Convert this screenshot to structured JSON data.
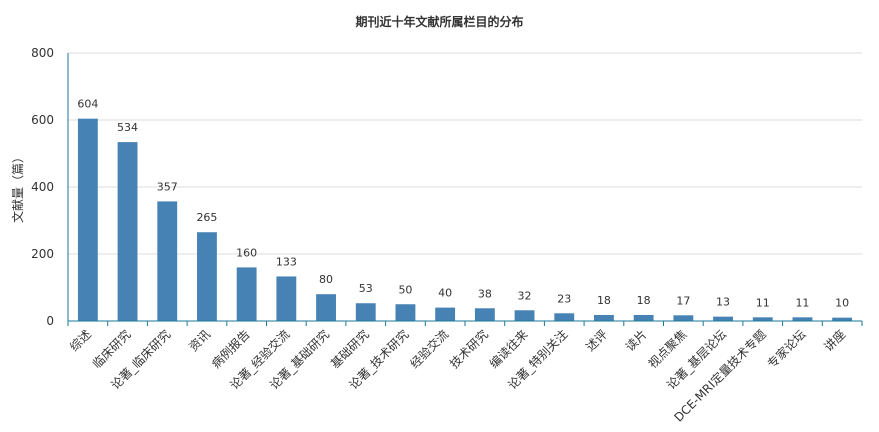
{
  "chart_data": {
    "type": "bar",
    "title": "期刊近十年文献所属栏目的分布",
    "xlabel": "",
    "ylabel": "文献量（篇）",
    "ylim": [
      0,
      800
    ],
    "yticks": [
      0,
      200,
      400,
      600,
      800
    ],
    "grid": true,
    "legend": "none",
    "bar_color": "#4682b4",
    "axis_color": "#1a7a99",
    "categories": [
      "综述",
      "临床研究",
      "论著_临床研究",
      "资讯",
      "病例报告",
      "论著_经验交流",
      "论著_基础研究",
      "基础研究",
      "论著_技术研究",
      "经验交流",
      "技术研究",
      "编读往来",
      "论著_特别关注",
      "述评",
      "读片",
      "视点聚焦",
      "论著_基层论坛",
      "DCE-MRI定量技术专题",
      "专家论坛",
      "讲座"
    ],
    "values": [
      604,
      534,
      357,
      265,
      160,
      133,
      80,
      53,
      50,
      40,
      38,
      32,
      23,
      18,
      18,
      17,
      13,
      11,
      11,
      10
    ]
  }
}
